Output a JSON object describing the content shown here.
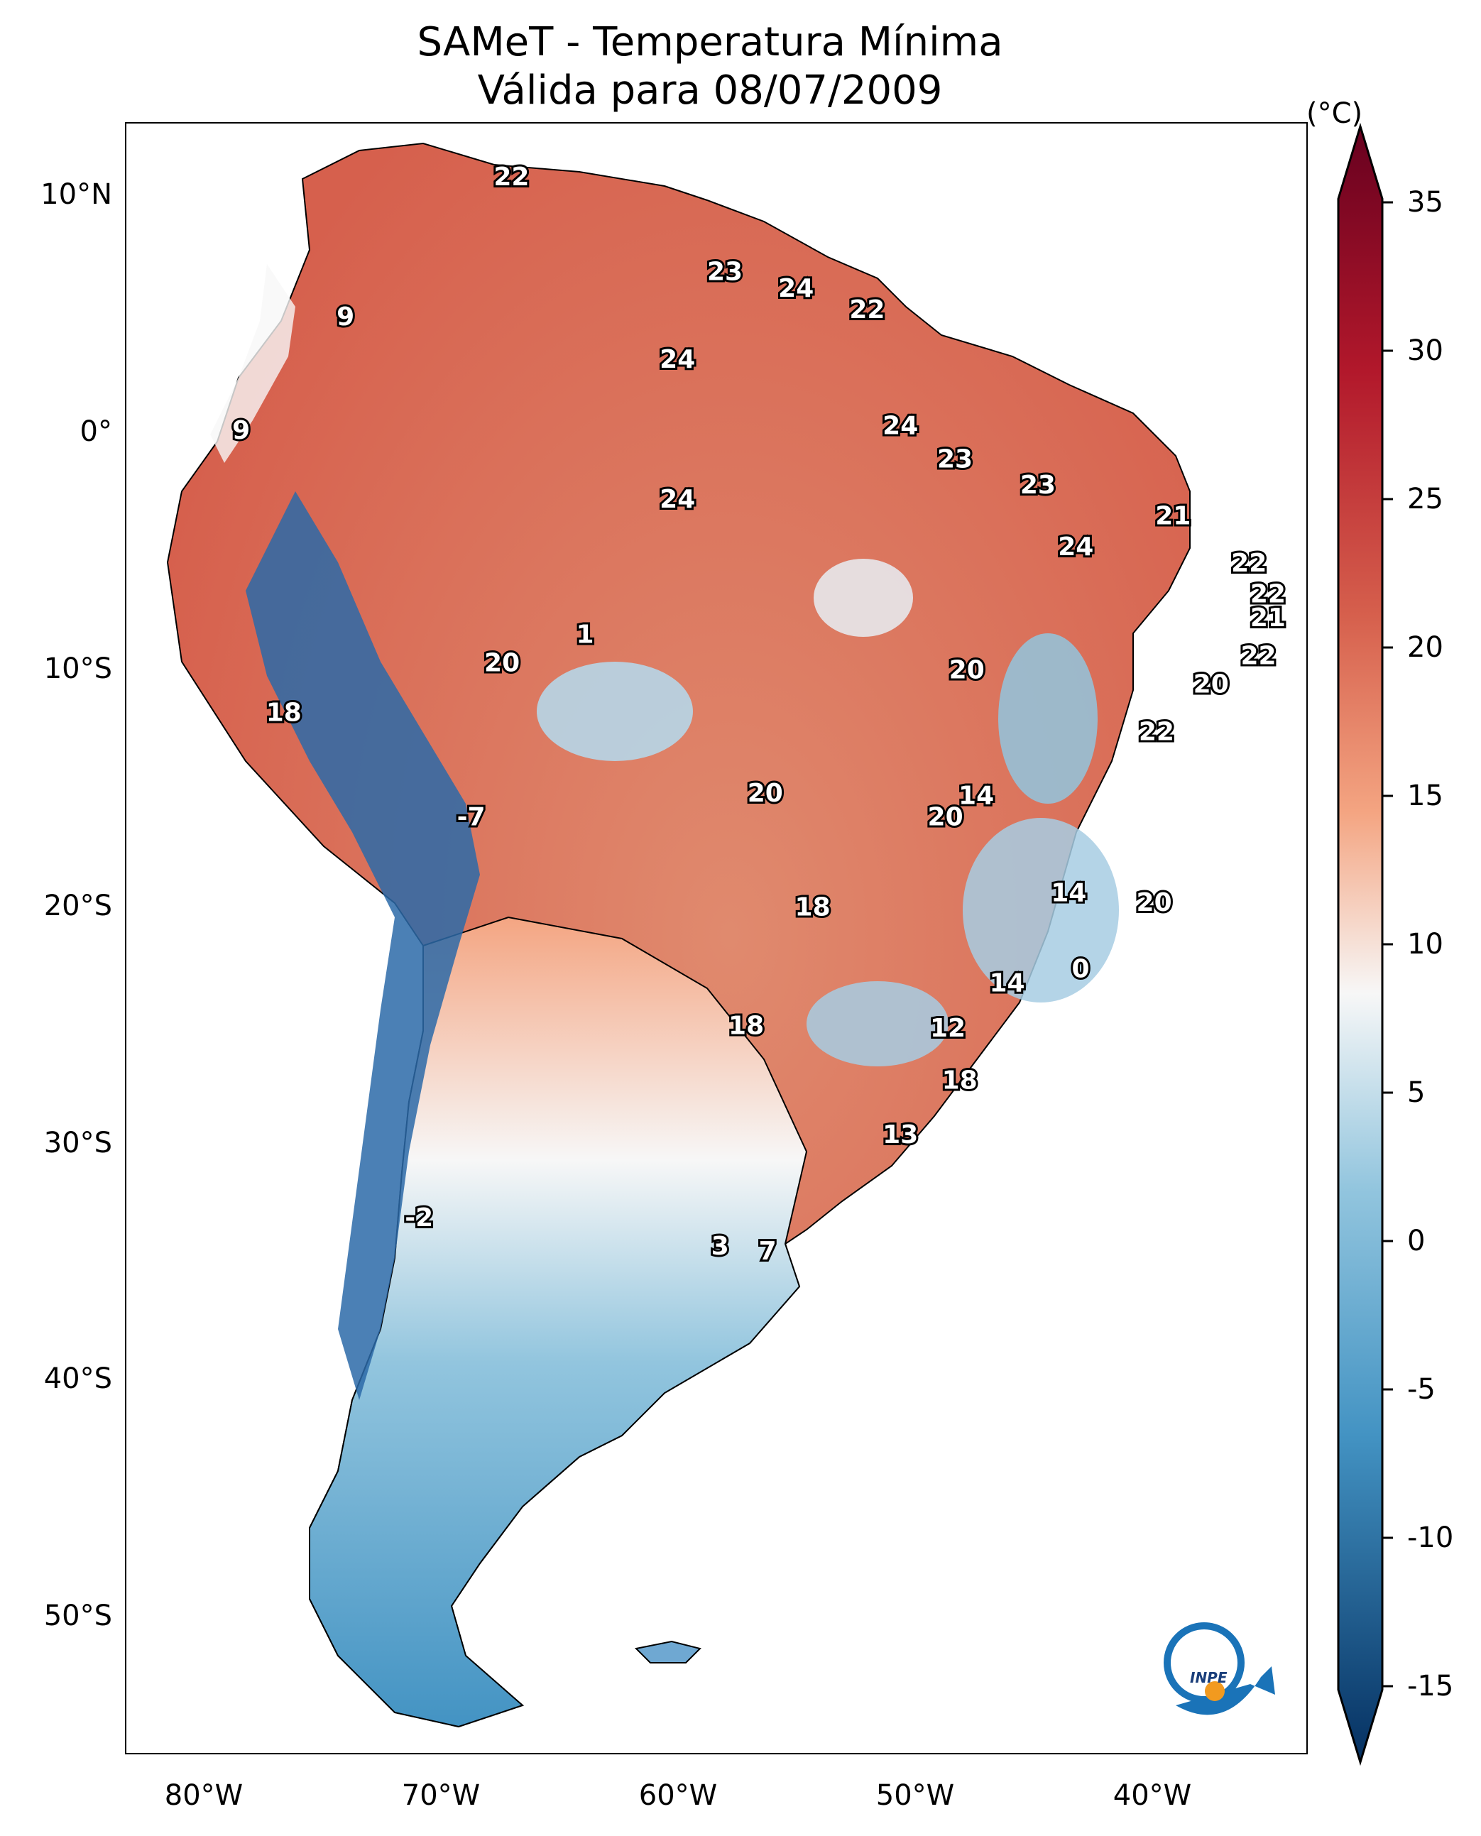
{
  "title": {
    "line1": "SAMeT - Temperatura Mínima",
    "line2": "Válida para 08/07/2009"
  },
  "axes": {
    "latitude_labels": [
      "10°N",
      "0°",
      "10°S",
      "20°S",
      "30°S",
      "40°S",
      "50°S"
    ],
    "longitude_labels": [
      "80°W",
      "70°W",
      "60°W",
      "50°W",
      "40°W"
    ]
  },
  "colorbar": {
    "unit": "(°C)",
    "ticks": [
      "35",
      "30",
      "25",
      "20",
      "15",
      "10",
      "5",
      "0",
      "-5",
      "-10",
      "-15"
    ],
    "colors": {
      "max": "#67001f",
      "warm": "#d6604d",
      "mild": "#f4a582",
      "neutral": "#f7f7f7",
      "cool": "#92c5de",
      "cold": "#4393c3",
      "min": "#053061"
    }
  },
  "map_labels": [
    {
      "text": "22",
      "lon": -67,
      "lat": 10.5
    },
    {
      "text": "9",
      "lon": -74,
      "lat": 4.6
    },
    {
      "text": "23",
      "lon": -58,
      "lat": 6.5
    },
    {
      "text": "24",
      "lon": -55,
      "lat": 5.8
    },
    {
      "text": "22",
      "lon": -52,
      "lat": 4.9
    },
    {
      "text": "24",
      "lon": -60,
      "lat": 2.8
    },
    {
      "text": "9",
      "lon": -78.4,
      "lat": -0.2
    },
    {
      "text": "24",
      "lon": -50.6,
      "lat": 0
    },
    {
      "text": "23",
      "lon": -48.3,
      "lat": -1.4
    },
    {
      "text": "24",
      "lon": -60,
      "lat": -3.1
    },
    {
      "text": "23",
      "lon": -44.8,
      "lat": -2.5
    },
    {
      "text": "21",
      "lon": -39.1,
      "lat": -3.8
    },
    {
      "text": "24",
      "lon": -43.2,
      "lat": -5.1
    },
    {
      "text": "22",
      "lon": -35.9,
      "lat": -5.8
    },
    {
      "text": "22",
      "lon": -35.1,
      "lat": -7.1
    },
    {
      "text": "21",
      "lon": -35.1,
      "lat": -8.1
    },
    {
      "text": "1",
      "lon": -63.9,
      "lat": -8.8
    },
    {
      "text": "22",
      "lon": -35.5,
      "lat": -9.7
    },
    {
      "text": "20",
      "lon": -67.4,
      "lat": -10
    },
    {
      "text": "20",
      "lon": -47.8,
      "lat": -10.3
    },
    {
      "text": "20",
      "lon": -37.5,
      "lat": -10.9
    },
    {
      "text": "18",
      "lon": -76.6,
      "lat": -12.1
    },
    {
      "text": "22",
      "lon": -39.8,
      "lat": -12.9
    },
    {
      "text": "14",
      "lon": -47.4,
      "lat": -15.6
    },
    {
      "text": "20",
      "lon": -56.3,
      "lat": -15.5
    },
    {
      "text": "20",
      "lon": -48.7,
      "lat": -16.5
    },
    {
      "text": "-7",
      "lon": -68.7,
      "lat": -16.5
    },
    {
      "text": "14",
      "lon": -43.5,
      "lat": -19.7
    },
    {
      "text": "20",
      "lon": -39.9,
      "lat": -20.1
    },
    {
      "text": "18",
      "lon": -54.3,
      "lat": -20.3
    },
    {
      "text": "0",
      "lon": -43,
      "lat": -22.9
    },
    {
      "text": "14",
      "lon": -46.1,
      "lat": -23.5
    },
    {
      "text": "12",
      "lon": -48.6,
      "lat": -25.4
    },
    {
      "text": "18",
      "lon": -57.1,
      "lat": -25.3
    },
    {
      "text": "18",
      "lon": -48.1,
      "lat": -27.6
    },
    {
      "text": "13",
      "lon": -50.6,
      "lat": -29.9
    },
    {
      "text": "-2",
      "lon": -70.9,
      "lat": -33.4
    },
    {
      "text": "3",
      "lon": -58.2,
      "lat": -34.6
    },
    {
      "text": "7",
      "lon": -56.2,
      "lat": -34.8
    }
  ],
  "logo": {
    "text": "INPE"
  }
}
